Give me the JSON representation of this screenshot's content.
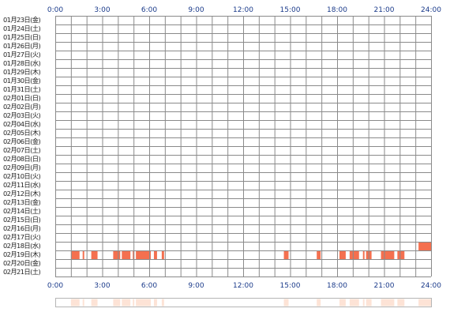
{
  "hour_labels": [
    "0:00",
    "3:00",
    "6:00",
    "9:00",
    "12:00",
    "15:00",
    "18:00",
    "21:00",
    "24:00"
  ],
  "dates": [
    "01月23日(金)",
    "01月24日(土)",
    "01月25日(日)",
    "01月26日(月)",
    "01月27日(火)",
    "01月28日(水)",
    "01月29日(木)",
    "01月30日(金)",
    "01月31日(土)",
    "02月01日(日)",
    "02月02日(月)",
    "02月03日(火)",
    "02月04日(水)",
    "02月05日(木)",
    "02月06日(金)",
    "02月07日(土)",
    "02月08日(日)",
    "02月09日(月)",
    "02月10日(火)",
    "02月11日(水)",
    "02月12日(木)",
    "02月13日(金)",
    "02月14日(土)",
    "02月15日(日)",
    "02月16日(月)",
    "02月17日(火)",
    "02月18日(水)",
    "02月19日(木)",
    "02月20日(金)",
    "02月21日(土)"
  ],
  "colors": {
    "activity": "#f4704f",
    "summary": "#fde3d6",
    "grid_line": "#8a8a8a",
    "header_text": "#1a3a8a",
    "date_text": "#222222"
  },
  "chart_data": {
    "type": "heatmap",
    "x_unit": "hour of day",
    "xlim": [
      0,
      24
    ],
    "x_ticks": [
      0,
      3,
      6,
      9,
      12,
      15,
      18,
      21,
      24
    ],
    "y_categories": [
      "01月23日(金)",
      "01月24日(土)",
      "01月25日(日)",
      "01月26日(月)",
      "01月27日(火)",
      "01月28日(水)",
      "01月29日(木)",
      "01月30日(金)",
      "01月31日(土)",
      "02月01日(日)",
      "02月02日(月)",
      "02月03日(火)",
      "02月04日(水)",
      "02月05日(木)",
      "02月06日(金)",
      "02月07日(土)",
      "02月08日(日)",
      "02月09日(月)",
      "02月10日(火)",
      "02月11日(水)",
      "02月12日(木)",
      "02月13日(金)",
      "02月14日(土)",
      "02月15日(日)",
      "02月16日(月)",
      "02月17日(火)",
      "02月18日(水)",
      "02月19日(木)",
      "02月20日(金)",
      "02月21日(土)"
    ],
    "activity": [
      {
        "date": "02月18日(水)",
        "start": 23.2,
        "end": 24.0
      },
      {
        "date": "02月19日(木)",
        "start": 1.0,
        "end": 1.55
      },
      {
        "date": "02月19日(木)",
        "start": 1.75,
        "end": 1.85
      },
      {
        "date": "02月19日(木)",
        "start": 2.3,
        "end": 2.7
      },
      {
        "date": "02月19日(木)",
        "start": 3.7,
        "end": 4.15
      },
      {
        "date": "02月19日(木)",
        "start": 4.25,
        "end": 4.8
      },
      {
        "date": "02月19日(木)",
        "start": 4.95,
        "end": 5.05
      },
      {
        "date": "02月19日(木)",
        "start": 5.15,
        "end": 6.1
      },
      {
        "date": "02月19日(木)",
        "start": 6.3,
        "end": 6.5
      },
      {
        "date": "02月19日(木)",
        "start": 6.8,
        "end": 6.95
      },
      {
        "date": "02月19日(木)",
        "start": 14.6,
        "end": 14.9
      },
      {
        "date": "02月19日(木)",
        "start": 16.7,
        "end": 16.95
      },
      {
        "date": "02月19日(木)",
        "start": 18.15,
        "end": 18.55
      },
      {
        "date": "02月19日(木)",
        "start": 18.8,
        "end": 19.4
      },
      {
        "date": "02月19日(木)",
        "start": 19.65,
        "end": 19.75
      },
      {
        "date": "02月19日(木)",
        "start": 19.85,
        "end": 20.2
      },
      {
        "date": "02月19日(木)",
        "start": 20.8,
        "end": 21.65
      },
      {
        "date": "02月19日(木)",
        "start": 21.85,
        "end": 22.3
      }
    ],
    "summary_bar": [
      {
        "start": 1.0,
        "end": 1.55
      },
      {
        "start": 1.75,
        "end": 1.85
      },
      {
        "start": 2.3,
        "end": 2.7
      },
      {
        "start": 3.7,
        "end": 4.15
      },
      {
        "start": 4.25,
        "end": 4.8
      },
      {
        "start": 4.95,
        "end": 5.05
      },
      {
        "start": 5.15,
        "end": 6.1
      },
      {
        "start": 6.3,
        "end": 6.5
      },
      {
        "start": 6.8,
        "end": 6.95
      },
      {
        "start": 14.6,
        "end": 14.9
      },
      {
        "start": 16.7,
        "end": 16.95
      },
      {
        "start": 18.15,
        "end": 18.55
      },
      {
        "start": 18.8,
        "end": 19.4
      },
      {
        "start": 19.65,
        "end": 19.75
      },
      {
        "start": 19.85,
        "end": 20.2
      },
      {
        "start": 20.8,
        "end": 21.65
      },
      {
        "start": 21.85,
        "end": 22.3
      },
      {
        "start": 23.2,
        "end": 24.0
      }
    ]
  }
}
